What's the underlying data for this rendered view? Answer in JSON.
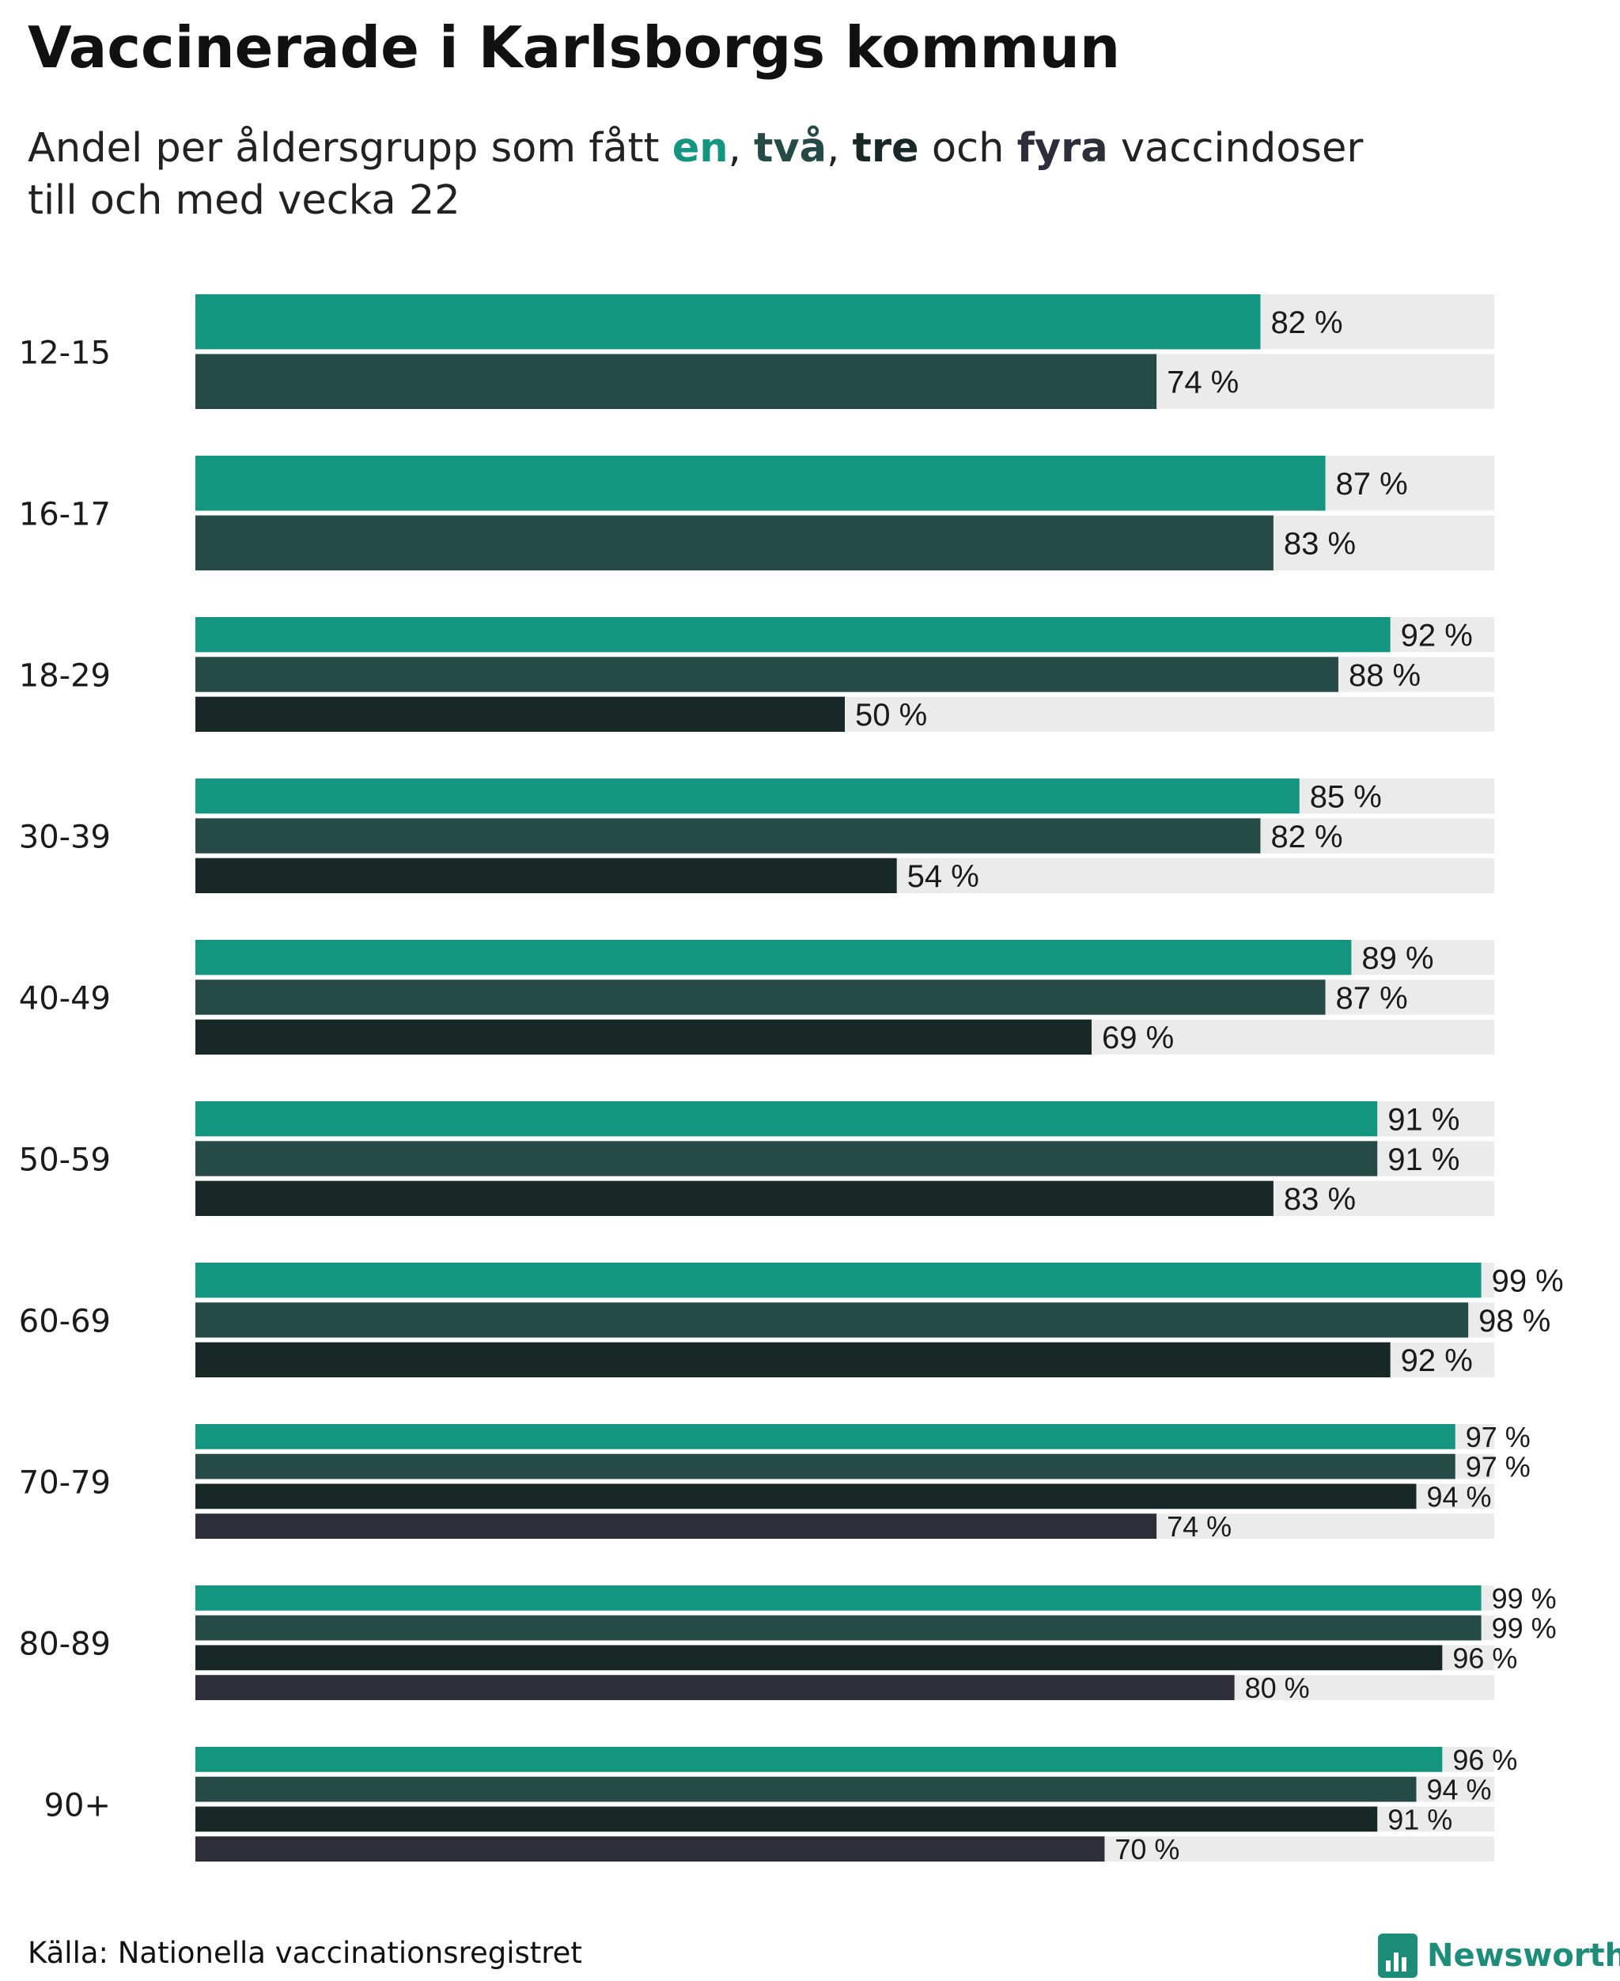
{
  "title": "Vaccinerade i Karlsborgs kommun",
  "subtitle": {
    "prefix": "Andel per åldersgrupp som fått ",
    "dose1": "en",
    "sep1": ", ",
    "dose2": "två",
    "sep2": ", ",
    "dose3": "tre",
    "sep3": " och ",
    "dose4": "fyra",
    "suffix": " vaccindoser",
    "line2": "till och med vecka 22"
  },
  "colors": {
    "dose1": "#14957f",
    "dose2": "#264b47",
    "dose3": "#172826",
    "dose4": "#2e2d3a",
    "track": "#ebebeb"
  },
  "chart_data": {
    "type": "bar",
    "orientation": "horizontal",
    "title": "Vaccinerade i Karlsborgs kommun",
    "xlabel": "",
    "ylabel": "",
    "xlim": [
      0,
      100
    ],
    "value_suffix": " %",
    "categories": [
      "12-15",
      "16-17",
      "18-29",
      "30-39",
      "40-49",
      "50-59",
      "60-69",
      "70-79",
      "80-89",
      "90+"
    ],
    "series": [
      {
        "name": "en",
        "values": [
          82,
          87,
          92,
          85,
          89,
          91,
          99,
          97,
          99,
          96
        ]
      },
      {
        "name": "två",
        "values": [
          74,
          83,
          88,
          82,
          87,
          91,
          98,
          97,
          99,
          94
        ]
      },
      {
        "name": "tre",
        "values": [
          null,
          null,
          50,
          54,
          69,
          83,
          92,
          94,
          96,
          91
        ]
      },
      {
        "name": "fyra",
        "values": [
          null,
          null,
          null,
          null,
          null,
          null,
          null,
          74,
          80,
          70
        ]
      }
    ]
  },
  "source": "Källa: Nationella vaccinationsregistret",
  "logo": {
    "text": "Newsworthy"
  }
}
